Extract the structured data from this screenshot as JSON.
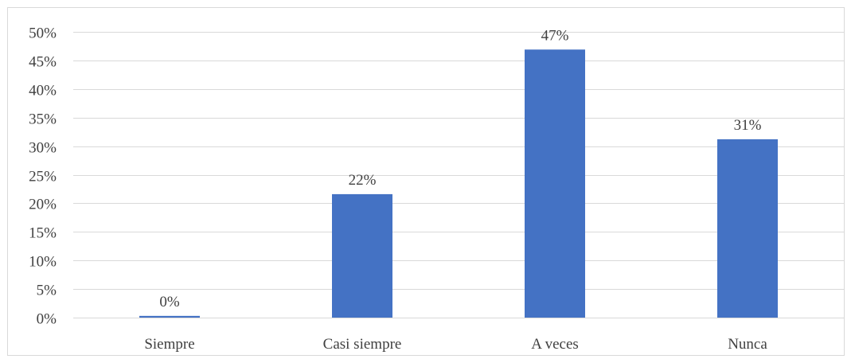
{
  "chart_data": {
    "type": "bar",
    "categories": [
      "Siempre",
      "Casi siempre",
      "A veces",
      "Nunca"
    ],
    "values": [
      0.3,
      21.6,
      46.9,
      31.2
    ],
    "data_labels": [
      "0%",
      "22%",
      "47%",
      "31%"
    ],
    "title": "",
    "xlabel": "",
    "ylabel": "",
    "ylim": [
      0,
      50
    ],
    "y_ticks": [
      {
        "value": 0,
        "label": "0%"
      },
      {
        "value": 5,
        "label": "5%"
      },
      {
        "value": 10,
        "label": "10%"
      },
      {
        "value": 15,
        "label": "15%"
      },
      {
        "value": 20,
        "label": "20%"
      },
      {
        "value": 25,
        "label": "25%"
      },
      {
        "value": 30,
        "label": "30%"
      },
      {
        "value": 35,
        "label": "35%"
      },
      {
        "value": 40,
        "label": "40%"
      },
      {
        "value": 45,
        "label": "45%"
      },
      {
        "value": 50,
        "label": "50%"
      }
    ],
    "grid": true,
    "legend": "none",
    "colors": {
      "bar": "#4472C4",
      "gridline": "#d9d9d9",
      "text": "#404040"
    }
  }
}
